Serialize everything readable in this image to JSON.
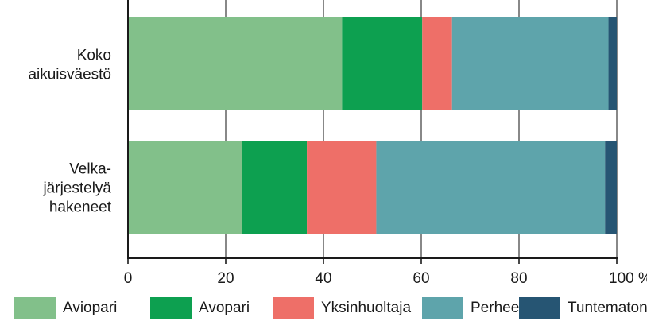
{
  "chart_data": {
    "type": "bar",
    "orientation": "horizontal",
    "stacked": true,
    "categories": [
      [
        "Koko",
        "aikuisväestö"
      ],
      [
        "Velka-",
        "järjestelyä",
        "hakeneet"
      ]
    ],
    "series": [
      {
        "name": "Aviopari",
        "color": "#82c08a",
        "values": [
          43.8,
          23.3
        ]
      },
      {
        "name": "Avopari",
        "color": "#0da050",
        "values": [
          16.4,
          13.3
        ]
      },
      {
        "name": "Yksinhuoltaja",
        "color": "#ee6f68",
        "values": [
          6.1,
          14.2
        ]
      },
      {
        "name": "Perheetön",
        "color": "#5ea4ab",
        "values": [
          32.0,
          46.8
        ]
      },
      {
        "name": "Tuntematon",
        "color": "#265573",
        "values": [
          1.7,
          2.4
        ]
      }
    ],
    "xlim": [
      0,
      100
    ],
    "xticks": [
      "0",
      "20",
      "40",
      "60",
      "80",
      "100 %"
    ],
    "grid": true,
    "legend": "bottom"
  }
}
